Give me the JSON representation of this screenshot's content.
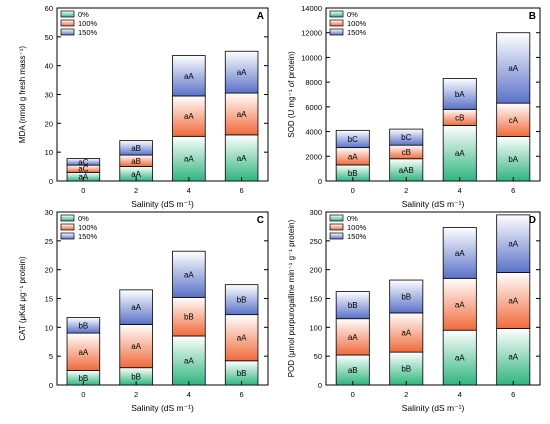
{
  "colors": {
    "s0": [
      "#2fb57f",
      "#ffffff"
    ],
    "s100": [
      "#f06a3a",
      "#ffffff"
    ],
    "s150": [
      "#5a72c8",
      "#ffffff"
    ],
    "axis": "#000000",
    "label_text": "#000000"
  },
  "chart_data": [
    {
      "panel": "A",
      "type": "bar",
      "stacked": true,
      "categories": [
        "0",
        "2",
        "4",
        "6"
      ],
      "legend": [
        "0%",
        "100%",
        "150%"
      ],
      "legend_position": "top-left",
      "xlabel": "Salinity (dS m⁻¹)",
      "ylabel": "MDA (nmol g fresh mass⁻¹)",
      "ylim": [
        0,
        60
      ],
      "yticks": [
        0,
        10,
        20,
        30,
        40,
        50,
        60
      ],
      "grid": false,
      "series": [
        {
          "name": "0%",
          "values": [
            3,
            5,
            15.5,
            16
          ],
          "labels": [
            "aA",
            "aA",
            "aA",
            "aA"
          ]
        },
        {
          "name": "100%",
          "values": [
            2.5,
            4,
            14,
            14.5
          ],
          "labels": [
            "aC",
            "aB",
            "aA",
            "aA"
          ]
        },
        {
          "name": "150%",
          "values": [
            2.3,
            5,
            14,
            14.5
          ],
          "labels": [
            "aC",
            "aB",
            "aA",
            "aA"
          ]
        }
      ]
    },
    {
      "panel": "B",
      "type": "bar",
      "stacked": true,
      "categories": [
        "0",
        "2",
        "4",
        "6"
      ],
      "legend": [
        "0%",
        "100%",
        "150%"
      ],
      "legend_position": "top-left",
      "xlabel": "Salinity (dS m⁻¹)",
      "ylabel": "SOD (U mg⁻¹ of protein)",
      "ylim": [
        0,
        14000
      ],
      "yticks": [
        0,
        2000,
        4000,
        6000,
        8000,
        10000,
        12000,
        14000
      ],
      "grid": false,
      "series": [
        {
          "name": "0%",
          "values": [
            1300,
            1800,
            4500,
            3600
          ],
          "labels": [
            "bB",
            "aAB",
            "aA",
            "bA"
          ]
        },
        {
          "name": "100%",
          "values": [
            1400,
            1100,
            1300,
            2700
          ],
          "labels": [
            "aA",
            "cB",
            "cB",
            "cA"
          ]
        },
        {
          "name": "150%",
          "values": [
            1400,
            1300,
            2500,
            5700
          ],
          "labels": [
            "bC",
            "bC",
            "bA",
            "aA"
          ]
        }
      ]
    },
    {
      "panel": "C",
      "type": "bar",
      "stacked": true,
      "categories": [
        "0",
        "2",
        "4",
        "6"
      ],
      "legend": [
        "0%",
        "100%",
        "150%"
      ],
      "legend_position": "top-left",
      "xlabel": "Salinity (dS m⁻¹)",
      "ylabel": "CAT (μKat μg⁻¹ protein)",
      "ylim": [
        0,
        30
      ],
      "yticks": [
        0,
        5,
        10,
        15,
        20,
        25,
        30
      ],
      "grid": false,
      "series": [
        {
          "name": "0%",
          "values": [
            2.5,
            3,
            8.5,
            4.2
          ],
          "labels": [
            "bB",
            "bB",
            "aA",
            "bB"
          ]
        },
        {
          "name": "100%",
          "values": [
            6.5,
            7.5,
            6.7,
            8
          ],
          "labels": [
            "aA",
            "aA",
            "bB",
            "aA"
          ]
        },
        {
          "name": "150%",
          "values": [
            2.7,
            6,
            8,
            5.2
          ],
          "labels": [
            "bB",
            "aA",
            "aA",
            "bB"
          ]
        }
      ]
    },
    {
      "panel": "D",
      "type": "bar",
      "stacked": true,
      "categories": [
        "0",
        "2",
        "4",
        "6"
      ],
      "legend": [
        "0%",
        "100%",
        "150%"
      ],
      "legend_position": "top-left",
      "xlabel": "Salinity (dS m⁻¹)",
      "ylabel": "POD (μmol purpurogalline min⁻¹ g⁻¹ protein)",
      "ylim": [
        0,
        300
      ],
      "yticks": [
        0,
        50,
        100,
        150,
        200,
        250,
        300
      ],
      "grid": false,
      "series": [
        {
          "name": "0%",
          "values": [
            52,
            57,
            95,
            98
          ],
          "labels": [
            "aB",
            "bB",
            "aA",
            "aA"
          ]
        },
        {
          "name": "100%",
          "values": [
            63,
            68,
            90,
            97
          ],
          "labels": [
            "aA",
            "aA",
            "aA",
            "aA"
          ]
        },
        {
          "name": "150%",
          "values": [
            47,
            57,
            88,
            100
          ],
          "labels": [
            "bB",
            "bB",
            "aA",
            "aA"
          ]
        }
      ]
    }
  ]
}
